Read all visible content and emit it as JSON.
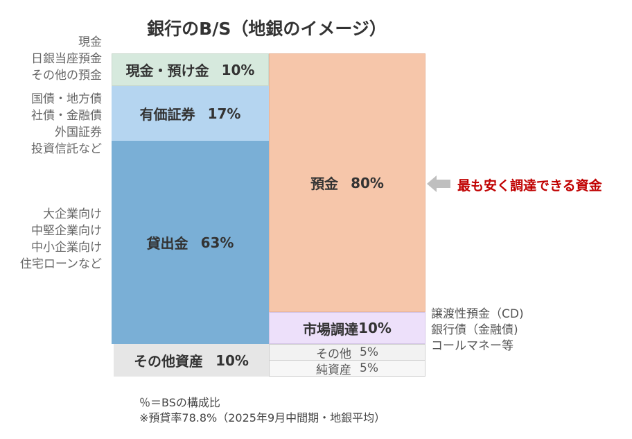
{
  "title": "銀行のB/S（地銀のイメージ）",
  "assets": {
    "cash": {
      "label": "現金・預け金",
      "pct": "10%",
      "color": "#d6e9dd",
      "notes": [
        "現金",
        "日銀当座預金",
        "その他の預金"
      ]
    },
    "securities": {
      "label": "有価証券",
      "pct": "17%",
      "color": "#b5d5f0",
      "notes": [
        "国債・地方債",
        "社債・金融債",
        "外国証券",
        "投資信託など"
      ]
    },
    "loans": {
      "label": "貸出金",
      "pct": "63%",
      "color": "#7aafd6",
      "notes": [
        "大企業向け",
        "中堅企業向け",
        "中小企業向け",
        "住宅ローンなど"
      ]
    },
    "other": {
      "label": "その他資産",
      "pct": "10%",
      "color": "#e6e6e6"
    }
  },
  "liabilities": {
    "deposits": {
      "label": "預金",
      "pct": "80%",
      "color": "#f6c6aa"
    },
    "market": {
      "label": "市場調達",
      "pct": "10%",
      "color": "#ede0fa",
      "notes": [
        "譲渡性預金（CD)",
        "銀行債（金融債)",
        "コールマネー等"
      ]
    },
    "other": {
      "label": "その他",
      "pct": "5%"
    },
    "equity": {
      "label": "純資産",
      "pct": "5%"
    }
  },
  "callout": {
    "text": "最も安く調達できる資金",
    "arrow_color": "#bfbfbf"
  },
  "footnotes": [
    "％＝BSの構成比",
    "※預貸率78.8%（2025年9月中間期・地銀平均）"
  ]
}
